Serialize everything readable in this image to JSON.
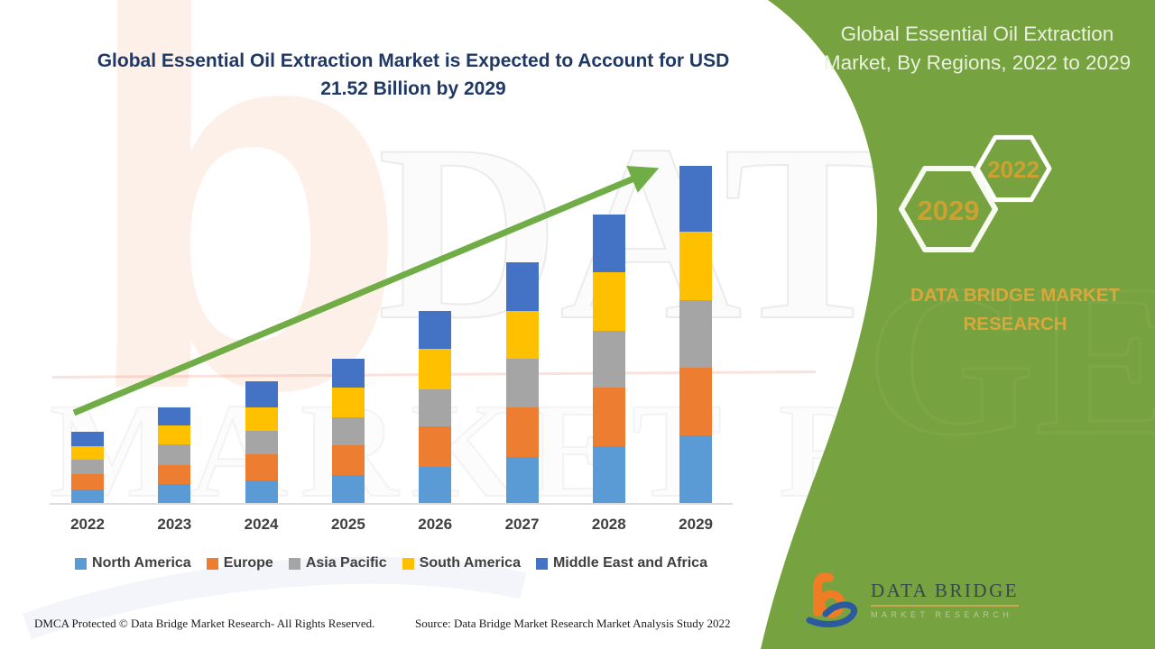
{
  "main_title": {
    "line1": "Global Essential Oil Extraction Market is Expected to Account for USD",
    "line2": "21.52 Billion by 2029",
    "color": "#1F3864"
  },
  "chart_data": {
    "type": "bar",
    "stacked": true,
    "title": "Global Essential Oil Extraction Market is Expected to Account for USD 21.52 Billion by 2029",
    "unit": "USD Billion (estimated from bar heights; 2029 total labeled 21.52)",
    "categories": [
      "2022",
      "2023",
      "2024",
      "2025",
      "2026",
      "2027",
      "2028",
      "2029"
    ],
    "series": [
      {
        "name": "North America",
        "color": "#5B9BD5",
        "values": [
          0.86,
          1.19,
          1.47,
          1.76,
          2.28,
          2.95,
          3.62,
          4.31
        ]
      },
      {
        "name": "Europe",
        "color": "#ED7D31",
        "values": [
          1.0,
          1.25,
          1.65,
          1.92,
          2.59,
          3.16,
          3.74,
          4.31
        ]
      },
      {
        "name": "Asia Pacific",
        "color": "#A5A5A5",
        "values": [
          0.88,
          1.31,
          1.48,
          1.78,
          2.39,
          3.07,
          3.64,
          4.31
        ]
      },
      {
        "name": "South America",
        "color": "#FFC000",
        "values": [
          0.9,
          1.21,
          1.53,
          1.92,
          2.59,
          3.07,
          3.74,
          4.37
        ]
      },
      {
        "name": "Middle East and Africa",
        "color": "#4472C4",
        "values": [
          0.9,
          1.15,
          1.63,
          1.82,
          2.44,
          3.11,
          3.66,
          4.22
        ]
      }
    ],
    "totals": [
      4.54,
      6.11,
      7.76,
      9.2,
      12.29,
      15.36,
      18.4,
      21.52
    ],
    "ylim": [
      0,
      21.52
    ],
    "grid": false,
    "legend_position": "bottom",
    "trend_arrow": true,
    "arrow_color": "#70AD47",
    "axis_label_color": "#3F3F3F"
  },
  "side_panel": {
    "title_line1": "Global Essential Oil Extraction",
    "title_line2": "Market, By Regions, 2022 to 2029",
    "panel_color": "#76A23F",
    "title_color": "#EAF2DD",
    "gold_color": "#D9A83C",
    "hexagons": [
      {
        "label": "2022"
      },
      {
        "label": "2029"
      }
    ],
    "brand": "DATA BRIDGE MARKET RESEARCH"
  },
  "logo": {
    "line1": "DATA BRIDGE",
    "line2": "MARKET RESEARCH"
  },
  "watermark": {
    "line1": "DATA BRIDGE",
    "line2": "MARKET RESEARCH",
    "letter_b": "b"
  },
  "footer": {
    "dmca": "DMCA Protected © Data Bridge Market Research- All Rights Reserved.",
    "source": "Source: Data Bridge Market Research Market Analysis Study 2022"
  }
}
